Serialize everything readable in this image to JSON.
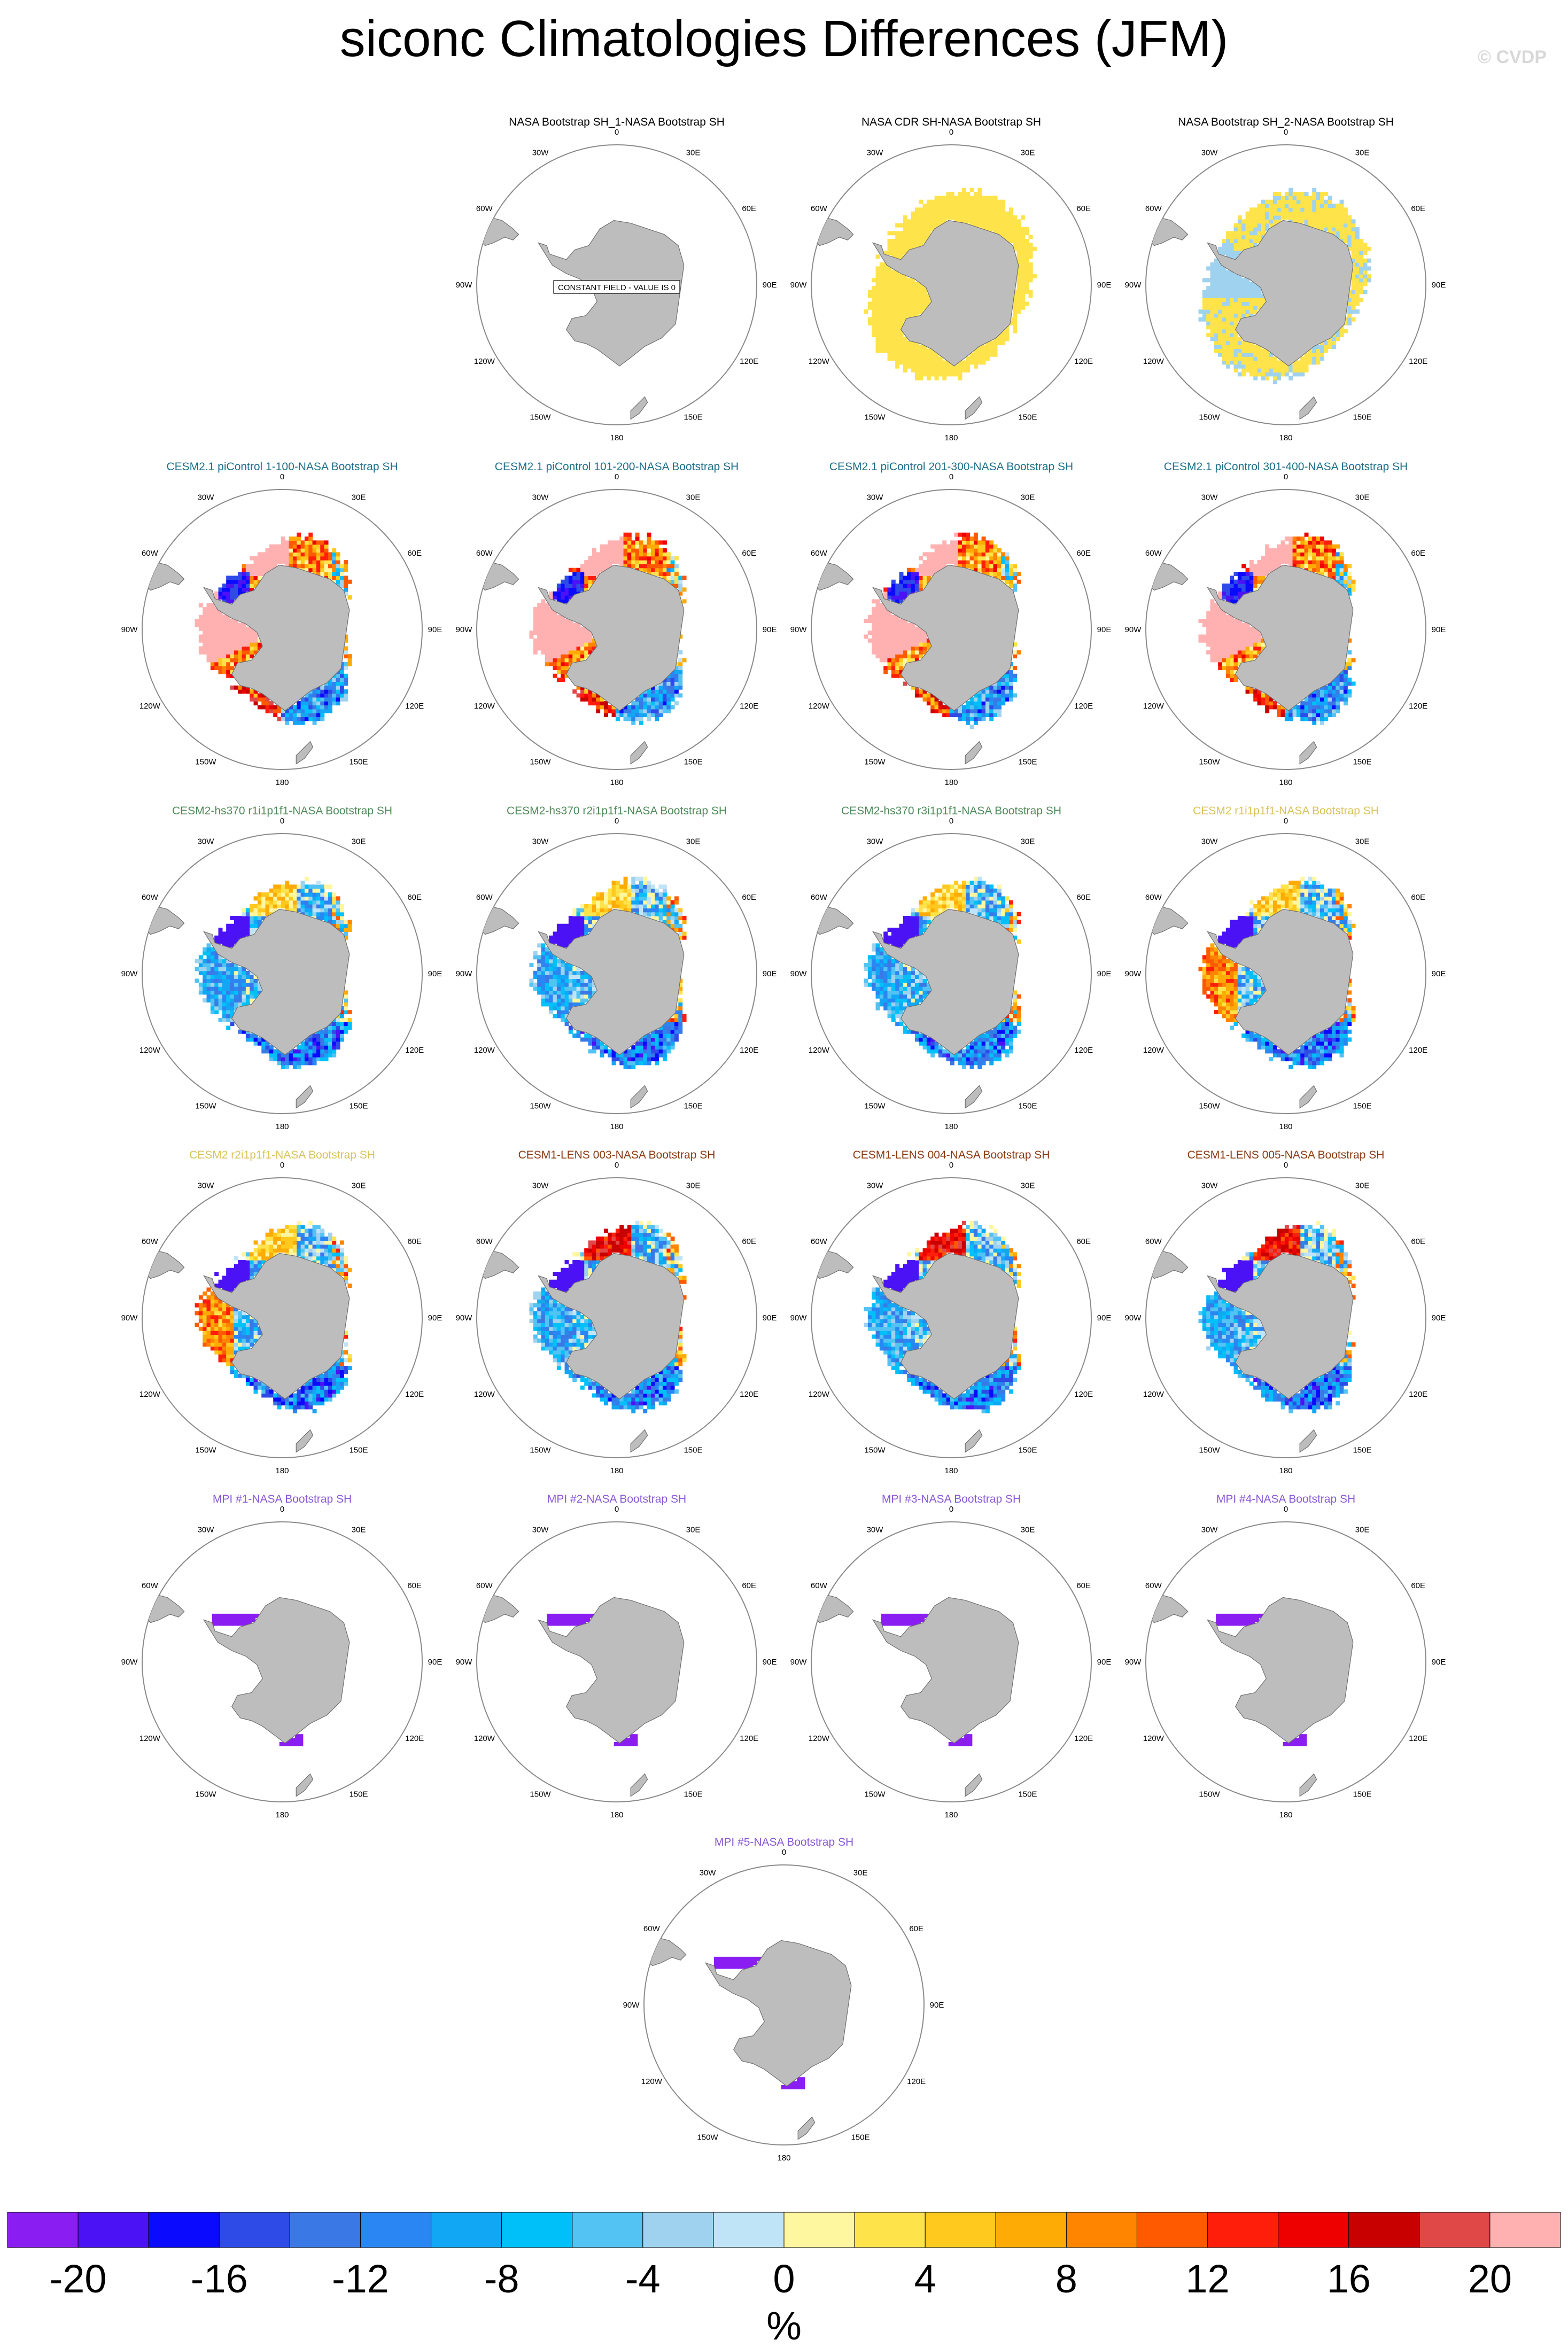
{
  "title": "siconc Climatologies Differences (JFM)",
  "credit": "© CVDP",
  "constant_note": "CONSTANT FIELD - VALUE IS 0",
  "lon_labels": [
    "0",
    "30E",
    "60E",
    "90E",
    "120E",
    "150E",
    "180",
    "150W",
    "120W",
    "90W",
    "60W",
    "30W"
  ],
  "colors": {
    "land": "#bdbdbd",
    "title_obs": "#000000",
    "title_cesm21": "#1d6f8a",
    "title_hs370": "#4e8a58",
    "title_cesm2": "#d9c35b",
    "title_lens": "#8a3a12",
    "title_mpi": "#8a58d8"
  },
  "chart_data": {
    "type": "heatmap",
    "projection": "south-polar-stereographic",
    "region": "Southern Hemisphere",
    "season": "JFM",
    "variable": "siconc",
    "colorbar": {
      "unit": "%",
      "tick_labels": [
        "-20",
        "-16",
        "-12",
        "-8",
        "-4",
        "0",
        "4",
        "8",
        "12",
        "16",
        "20"
      ],
      "bounds": [
        -20,
        -18,
        -16,
        -14,
        -12,
        -10,
        -8,
        -6,
        -4,
        -2,
        0,
        2,
        4,
        6,
        8,
        10,
        12,
        14,
        16,
        18,
        20
      ],
      "colors": [
        "#8a1ef2",
        "#4b12f5",
        "#0a0aff",
        "#2e4be8",
        "#3a78e6",
        "#2a86f2",
        "#11a7f5",
        "#00c0fa",
        "#52c3f2",
        "#9fd2ee",
        "#c0e4f7",
        "#fff6a0",
        "#ffe34a",
        "#ffc91e",
        "#ffab05",
        "#ff8500",
        "#ff5a00",
        "#ff1e0a",
        "#ee0000",
        "#c80000",
        "#e04848",
        "#ffb1b1"
      ]
    },
    "panels": [
      {
        "title": "NASA Bootstrap SH_1-NASA Bootstrap SH",
        "group": "obs",
        "pattern": "constant"
      },
      {
        "title": "NASA CDR SH-NASA Bootstrap SH",
        "group": "obs",
        "pattern": "cdr"
      },
      {
        "title": "NASA Bootstrap SH_2-NASA Bootstrap SH",
        "group": "obs",
        "pattern": "bs2"
      },
      {
        "title": "CESM2.1 piControl 1-100-NASA Bootstrap SH",
        "group": "cesm21",
        "pattern": "cesm21"
      },
      {
        "title": "CESM2.1 piControl 101-200-NASA Bootstrap SH",
        "group": "cesm21",
        "pattern": "cesm21"
      },
      {
        "title": "CESM2.1 piControl 201-300-NASA Bootstrap SH",
        "group": "cesm21",
        "pattern": "cesm21"
      },
      {
        "title": "CESM2.1 piControl 301-400-NASA Bootstrap SH",
        "group": "cesm21",
        "pattern": "cesm21"
      },
      {
        "title": "CESM2-hs370 r1i1p1f1-NASA Bootstrap SH",
        "group": "hs370",
        "pattern": "hs370"
      },
      {
        "title": "CESM2-hs370 r2i1p1f1-NASA Bootstrap SH",
        "group": "hs370",
        "pattern": "hs370"
      },
      {
        "title": "CESM2-hs370 r3i1p1f1-NASA Bootstrap SH",
        "group": "hs370",
        "pattern": "hs370"
      },
      {
        "title": "CESM2 r1i1p1f1-NASA Bootstrap SH",
        "group": "cesm2",
        "pattern": "cesm2"
      },
      {
        "title": "CESM2 r2i1p1f1-NASA Bootstrap SH",
        "group": "cesm2",
        "pattern": "cesm2"
      },
      {
        "title": "CESM1-LENS 003-NASA Bootstrap SH",
        "group": "lens",
        "pattern": "lens"
      },
      {
        "title": "CESM1-LENS 004-NASA Bootstrap SH",
        "group": "lens",
        "pattern": "lens"
      },
      {
        "title": "CESM1-LENS 005-NASA Bootstrap SH",
        "group": "lens",
        "pattern": "lens"
      },
      {
        "title": "MPI #1-NASA Bootstrap SH",
        "group": "mpi",
        "pattern": "mpi"
      },
      {
        "title": "MPI #2-NASA Bootstrap SH",
        "group": "mpi",
        "pattern": "mpi"
      },
      {
        "title": "MPI #3-NASA Bootstrap SH",
        "group": "mpi",
        "pattern": "mpi"
      },
      {
        "title": "MPI #4-NASA Bootstrap SH",
        "group": "mpi",
        "pattern": "mpi"
      },
      {
        "title": "MPI #5-NASA Bootstrap SH",
        "group": "mpi",
        "pattern": "mpi"
      }
    ]
  }
}
